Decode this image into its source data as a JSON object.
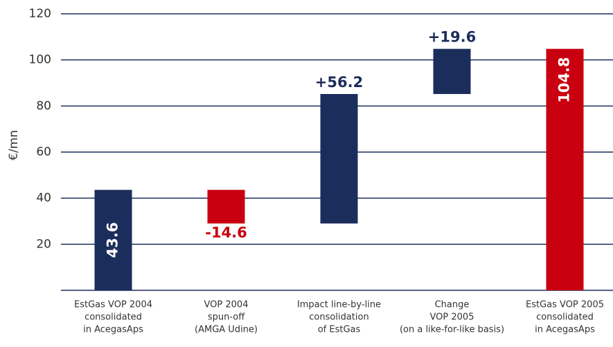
{
  "chart_data": {
    "type": "waterfall",
    "y_label": "€/mn",
    "categories": [
      [
        "EstGas VOP 2004",
        "consolidated",
        "in AcegasAps"
      ],
      [
        "VOP 2004",
        "spun-off",
        "(AMGA Udine)"
      ],
      [
        "Impact line-by-line",
        "consolidation",
        "of EstGas"
      ],
      [
        "Change",
        "VOP 2005",
        "(on a like-for-like basis)"
      ],
      [
        "EstGas VOP 2005",
        "consolidated",
        "in AcegasAps"
      ]
    ],
    "values": [
      43.6,
      -14.6,
      56.2,
      19.6,
      104.8
    ],
    "value_labels": [
      "43.6",
      "-14.6",
      "+56.2",
      "+19.6",
      "104.8"
    ],
    "measure": [
      "absolute",
      "relative",
      "relative",
      "relative",
      "absolute"
    ],
    "colors": [
      "#1b2d5b",
      "#c8000f",
      "#1b2d5b",
      "#1b2d5b",
      "#c8000f"
    ],
    "ylim": [
      0,
      120
    ],
    "yticks": [
      20,
      40,
      60,
      80,
      100,
      120
    ],
    "grid": true
  }
}
